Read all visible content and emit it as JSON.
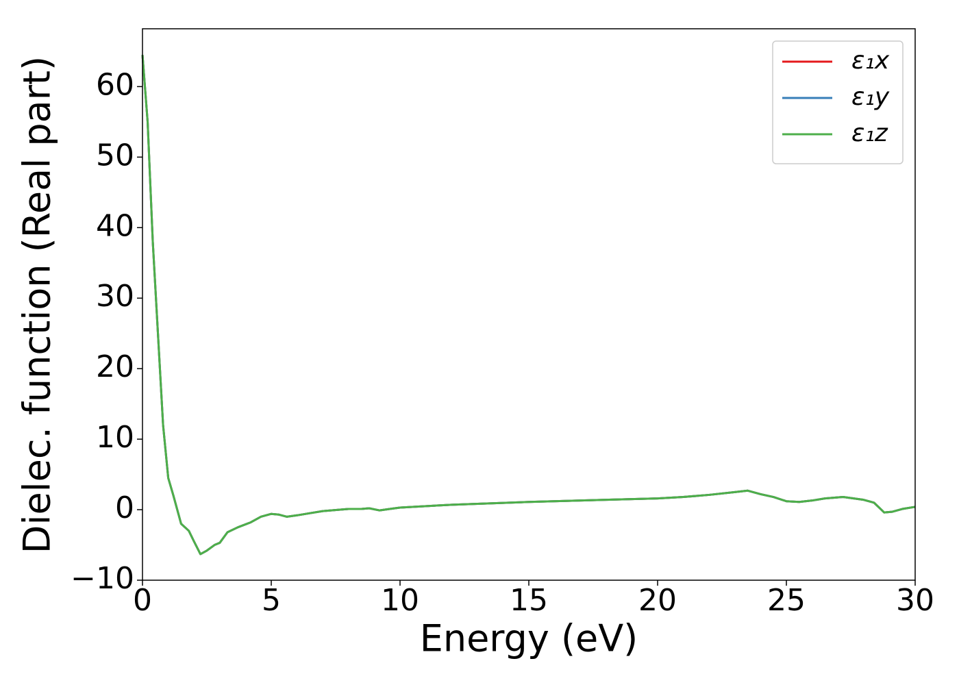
{
  "chart_data": {
    "type": "line",
    "xlabel": "Energy (eV)",
    "ylabel": "Dielec. function (Real part)",
    "x": [
      0,
      0.2,
      0.4,
      0.6,
      0.8,
      1.0,
      1.2,
      1.5,
      1.8,
      2.0,
      2.25,
      2.5,
      2.8,
      3.0,
      3.3,
      3.7,
      4.2,
      4.6,
      5.0,
      5.3,
      5.6,
      6.0,
      6.5,
      7.0,
      8.0,
      8.5,
      8.8,
      9.2,
      9.6,
      10,
      12,
      15,
      18,
      20,
      21,
      22,
      23,
      23.5,
      24,
      24.5,
      25,
      25.5,
      26,
      26.5,
      27.2,
      28,
      28.4,
      28.8,
      29.1,
      29.5,
      30
    ],
    "series": [
      {
        "name": "ε₁x",
        "color": "#e41a1c",
        "values": [
          64.5,
          55,
          38,
          25,
          12,
          4.5,
          2,
          -2,
          -3,
          -4.5,
          -6.3,
          -5.8,
          -5,
          -4.7,
          -3.2,
          -2.5,
          -1.8,
          -1,
          -0.6,
          -0.7,
          -1,
          -0.8,
          -0.5,
          -0.2,
          0.1,
          0.1,
          0.2,
          -0.1,
          0.1,
          0.3,
          0.7,
          1.1,
          1.4,
          1.6,
          1.8,
          2.1,
          2.5,
          2.7,
          2.2,
          1.8,
          1.2,
          1.1,
          1.3,
          1.6,
          1.8,
          1.4,
          1,
          -0.4,
          -0.3,
          0.1,
          0.4
        ]
      },
      {
        "name": "ε₁y",
        "color": "#377eb8",
        "values": [
          64.5,
          55,
          38,
          25,
          12,
          4.5,
          2,
          -2,
          -3,
          -4.5,
          -6.3,
          -5.8,
          -5,
          -4.7,
          -3.2,
          -2.5,
          -1.8,
          -1,
          -0.6,
          -0.7,
          -1,
          -0.8,
          -0.5,
          -0.2,
          0.1,
          0.1,
          0.2,
          -0.1,
          0.1,
          0.3,
          0.7,
          1.1,
          1.4,
          1.6,
          1.8,
          2.1,
          2.5,
          2.7,
          2.2,
          1.8,
          1.2,
          1.1,
          1.3,
          1.6,
          1.8,
          1.4,
          1,
          -0.4,
          -0.3,
          0.1,
          0.4
        ]
      },
      {
        "name": "ε₁z",
        "color": "#4daf4a",
        "values": [
          64.5,
          55,
          38,
          25,
          12,
          4.5,
          2,
          -2,
          -3,
          -4.5,
          -6.3,
          -5.8,
          -5,
          -4.7,
          -3.2,
          -2.5,
          -1.8,
          -1,
          -0.6,
          -0.7,
          -1,
          -0.8,
          -0.5,
          -0.2,
          0.1,
          0.1,
          0.2,
          -0.1,
          0.1,
          0.3,
          0.7,
          1.1,
          1.4,
          1.6,
          1.8,
          2.1,
          2.5,
          2.7,
          2.2,
          1.8,
          1.2,
          1.1,
          1.3,
          1.6,
          1.8,
          1.4,
          1,
          -0.4,
          -0.3,
          0.1,
          0.4
        ]
      }
    ],
    "xlim": [
      0,
      30
    ],
    "xticks": [
      0,
      5,
      10,
      15,
      20,
      25,
      30
    ],
    "ylim": [
      -10,
      68.2
    ],
    "yticks": [
      {
        "value": -10,
        "label": "−10"
      },
      0,
      10,
      20,
      30,
      40,
      50,
      60
    ],
    "legend": "upper right",
    "grid": false
  }
}
